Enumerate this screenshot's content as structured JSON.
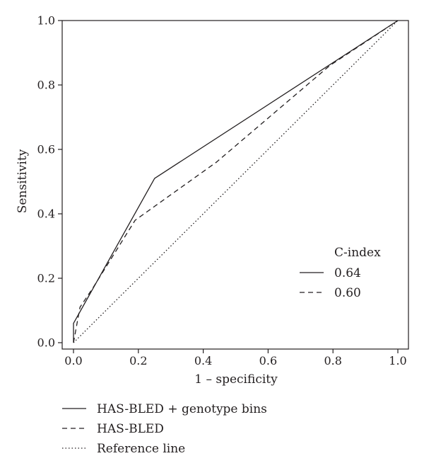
{
  "chart_data": {
    "type": "line",
    "title": "",
    "xlabel": "1 – specificity",
    "ylabel": "Sensitivity",
    "xlim": [
      0.0,
      1.0
    ],
    "ylim": [
      0.0,
      1.0
    ],
    "x_ticks": [
      "0.0",
      "0.2",
      "0.4",
      "0.6",
      "0.8",
      "1.0"
    ],
    "y_ticks": [
      "0.0",
      "0.2",
      "0.4",
      "0.6",
      "0.8",
      "1.0"
    ],
    "grid": false,
    "series": [
      {
        "name": "HAS-BLED + genotype bins",
        "style": "solid",
        "c_index": "0.64",
        "x": [
          0.0,
          0.0,
          0.25,
          1.0
        ],
        "y": [
          0.0,
          0.06,
          0.51,
          1.0
        ]
      },
      {
        "name": "HAS-BLED",
        "style": "dashed",
        "c_index": "0.60",
        "x": [
          0.0,
          0.02,
          0.06,
          0.19,
          0.44,
          0.79,
          1.0
        ],
        "y": [
          0.0,
          0.11,
          0.17,
          0.38,
          0.56,
          0.86,
          1.0
        ]
      },
      {
        "name": "Reference line",
        "style": "dotted",
        "x": [
          0.0,
          1.0
        ],
        "y": [
          0.0,
          1.0
        ]
      }
    ],
    "inner_legend": {
      "title": "C-index",
      "position": "lower-right"
    },
    "outer_legend": {
      "position": "bottom-left"
    }
  }
}
